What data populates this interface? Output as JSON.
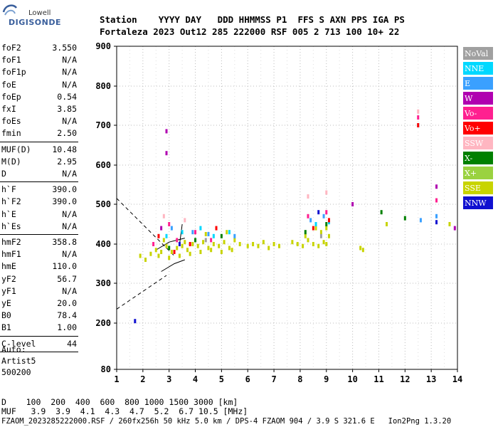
{
  "brand": {
    "line1": "Lowell",
    "line2": "DIGISONDE"
  },
  "header": {
    "labels_line": "Station    YYYY DAY   DDD HHMMSS P1  FFS S AXN PPS IGA PS",
    "values_line": "Fortaleza 2023 Out12 285 222000 RSF 005 2 713 100 10+ 22"
  },
  "params_group1": [
    {
      "k": "foF2",
      "v": "3.550"
    },
    {
      "k": "foF1",
      "v": "N/A"
    },
    {
      "k": "foF1p",
      "v": "N/A"
    },
    {
      "k": "foE",
      "v": "N/A"
    },
    {
      "k": "foEp",
      "v": "0.54"
    },
    {
      "k": "fxI",
      "v": "3.85"
    },
    {
      "k": "foEs",
      "v": "N/A"
    },
    {
      "k": "fmin",
      "v": "2.50"
    }
  ],
  "params_group2": [
    {
      "k": "MUF(D)",
      "v": "10.48"
    },
    {
      "k": "M(D)",
      "v": "2.95"
    },
    {
      "k": "D",
      "v": "N/A"
    }
  ],
  "params_group3": [
    {
      "k": "h`F",
      "v": "390.0"
    },
    {
      "k": "h`F2",
      "v": "390.0"
    },
    {
      "k": "h`E",
      "v": "N/A"
    },
    {
      "k": "h`Es",
      "v": "N/A"
    }
  ],
  "params_group4": [
    {
      "k": "hmF2",
      "v": "358.8"
    },
    {
      "k": "hmF1",
      "v": "N/A"
    },
    {
      "k": "hmE",
      "v": "110.0"
    },
    {
      "k": "yF2",
      "v": "56.7"
    },
    {
      "k": "yF1",
      "v": "N/A"
    },
    {
      "k": "yE",
      "v": "20.0"
    },
    {
      "k": "B0",
      "v": "78.4"
    },
    {
      "k": "B1",
      "v": "1.00"
    }
  ],
  "params_group5": [
    {
      "k": "C-level",
      "v": "44"
    }
  ],
  "autoscaling": {
    "line1": "Auto:",
    "line2": "Artist5",
    "line3": "500200"
  },
  "footer": {
    "d_line": "D    100  200  400  600  800 1000 1500 3000 [km]",
    "muf_line": "MUF   3.9  3.9  4.1  4.3  4.7  5.2  6.7 10.5 [MHz]",
    "file_line": "FZAOM_2023285222000.RSF / 260fx256h 50 kHz 5.0 km / DPS-4 FZAOM 904 / 3.9 S 321.6 E   Ion2Png 1.3.20"
  },
  "legend": [
    {
      "label": "NoVal",
      "color": "#a0a0a0"
    },
    {
      "label": "NNE",
      "color": "#00d8ff"
    },
    {
      "label": "E",
      "color": "#3aa0ff"
    },
    {
      "label": "W",
      "color": "#b000b0"
    },
    {
      "label": "Vo-",
      "color": "#ff2090"
    },
    {
      "label": "Vo+",
      "color": "#ff0000"
    },
    {
      "label": "SSW",
      "color": "#ffb6c1"
    },
    {
      "label": "X-",
      "color": "#008000"
    },
    {
      "label": "X+",
      "color": "#9ad240"
    },
    {
      "label": "SSE",
      "color": "#c8d400"
    },
    {
      "label": "NNW",
      "color": "#1010d0"
    }
  ],
  "chart_data": {
    "type": "scatter",
    "xlim": [
      1,
      14
    ],
    "ylim": [
      80,
      900
    ],
    "x_ticks": [
      1,
      2,
      3,
      4,
      5,
      6,
      7,
      8,
      9,
      10,
      11,
      12,
      13,
      14
    ],
    "y_ticks": [
      80,
      200,
      300,
      400,
      500,
      600,
      700,
      800,
      900
    ],
    "grid": true,
    "series": [
      {
        "name": "SSE",
        "color": "#c8d400",
        "points": [
          [
            1.9,
            370
          ],
          [
            2.1,
            360
          ],
          [
            2.3,
            375
          ],
          [
            2.5,
            385
          ],
          [
            2.7,
            380
          ],
          [
            2.9,
            395
          ],
          [
            3.1,
            380
          ],
          [
            3.3,
            390
          ],
          [
            3.5,
            395
          ],
          [
            3.7,
            385
          ],
          [
            3.9,
            400
          ],
          [
            4.1,
            395
          ],
          [
            4.3,
            405
          ],
          [
            4.5,
            390
          ],
          [
            4.7,
            400
          ],
          [
            4.9,
            395
          ],
          [
            5.1,
            405
          ],
          [
            5.3,
            390
          ],
          [
            5.5,
            410
          ],
          [
            5.7,
            400
          ],
          [
            6.2,
            400
          ],
          [
            6.4,
            395
          ],
          [
            6.6,
            405
          ],
          [
            6.8,
            390
          ],
          [
            7.0,
            400
          ],
          [
            7.2,
            395
          ],
          [
            7.7,
            405
          ],
          [
            7.9,
            400
          ],
          [
            8.1,
            395
          ],
          [
            8.3,
            410
          ],
          [
            8.5,
            400
          ],
          [
            8.7,
            395
          ],
          [
            8.9,
            405
          ],
          [
            9.0,
            400
          ],
          [
            10.3,
            390
          ],
          [
            10.4,
            385
          ],
          [
            11.3,
            450
          ],
          [
            13.7,
            450
          ],
          [
            2.6,
            370
          ],
          [
            3.0,
            365
          ],
          [
            3.4,
            370
          ],
          [
            3.8,
            375
          ],
          [
            4.2,
            380
          ],
          [
            4.6,
            385
          ],
          [
            5.0,
            380
          ],
          [
            5.4,
            385
          ],
          [
            6.0,
            395
          ],
          [
            8.2,
            420
          ],
          [
            8.8,
            430
          ],
          [
            9.1,
            420
          ],
          [
            2.8,
            410
          ],
          [
            3.6,
            405
          ],
          [
            4.4,
            425
          ],
          [
            5.2,
            430
          ],
          [
            8.6,
            440
          ],
          [
            9.0,
            440
          ]
        ]
      },
      {
        "name": "NNE",
        "color": "#00d8ff",
        "points": [
          [
            2.9,
            420
          ],
          [
            3.5,
            430
          ],
          [
            4.2,
            440
          ],
          [
            4.7,
            420
          ],
          [
            5.3,
            430
          ],
          [
            8.6,
            450
          ],
          [
            9.1,
            455
          ],
          [
            12.5,
            700
          ]
        ]
      },
      {
        "name": "E",
        "color": "#3aa0ff",
        "points": [
          [
            3.1,
            440
          ],
          [
            3.9,
            430
          ],
          [
            4.5,
            425
          ],
          [
            5.5,
            420
          ],
          [
            8.4,
            460
          ],
          [
            8.9,
            470
          ],
          [
            12.6,
            460
          ],
          [
            13.2,
            470
          ]
        ]
      },
      {
        "name": "Vo-",
        "color": "#ff2090",
        "points": [
          [
            2.4,
            400
          ],
          [
            3.0,
            450
          ],
          [
            3.3,
            410
          ],
          [
            4.0,
            430
          ],
          [
            4.6,
            410
          ],
          [
            8.3,
            470
          ],
          [
            9.0,
            480
          ],
          [
            12.5,
            720
          ],
          [
            13.2,
            510
          ]
        ]
      },
      {
        "name": "Vo+",
        "color": "#ff0000",
        "points": [
          [
            2.6,
            420
          ],
          [
            3.2,
            380
          ],
          [
            3.8,
            400
          ],
          [
            4.8,
            440
          ],
          [
            8.5,
            440
          ],
          [
            9.1,
            460
          ],
          [
            12.5,
            700
          ]
        ]
      },
      {
        "name": "W",
        "color": "#b000b0",
        "points": [
          [
            2.9,
            685
          ],
          [
            2.9,
            630
          ],
          [
            2.7,
            440
          ],
          [
            10.0,
            500
          ],
          [
            13.2,
            545
          ],
          [
            13.9,
            440
          ]
        ]
      },
      {
        "name": "X-",
        "color": "#008000",
        "points": [
          [
            3.0,
            390
          ],
          [
            4.0,
            410
          ],
          [
            5.0,
            420
          ],
          [
            8.2,
            430
          ],
          [
            9.0,
            450
          ],
          [
            11.1,
            480
          ],
          [
            12.0,
            465
          ]
        ]
      },
      {
        "name": "SSW",
        "color": "#ffb6c1",
        "points": [
          [
            2.8,
            470
          ],
          [
            3.6,
            460
          ],
          [
            8.3,
            520
          ],
          [
            9.0,
            530
          ],
          [
            12.5,
            735
          ]
        ]
      },
      {
        "name": "NNW",
        "color": "#1010d0",
        "points": [
          [
            1.7,
            205
          ],
          [
            3.4,
            400
          ],
          [
            8.7,
            480
          ],
          [
            13.2,
            455
          ]
        ]
      },
      {
        "name": "NoVal",
        "color": "#a0a0a0",
        "points": [
          [
            4.4,
            410
          ],
          [
            8.8,
            420
          ]
        ]
      }
    ]
  }
}
